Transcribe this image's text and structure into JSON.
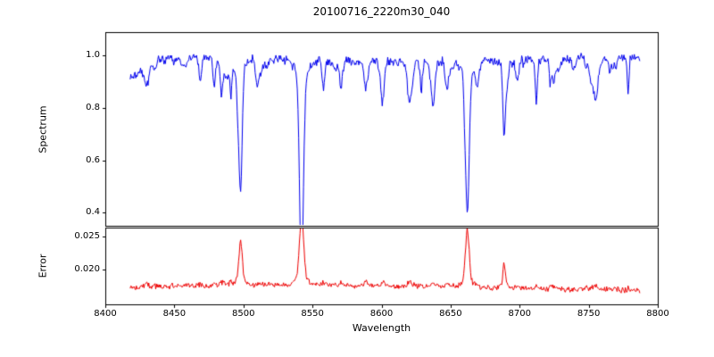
{
  "figure": {
    "background": "#ffffff",
    "spine_color": "#000000"
  },
  "chart_data": {
    "type": "line",
    "title": "20100716_2220m30_040",
    "xlabel": "Wavelength",
    "xlim": [
      8400,
      8800
    ],
    "x_ticks": [
      8400,
      8450,
      8500,
      8550,
      8600,
      8650,
      8700,
      8750,
      8800
    ],
    "x_tick_labels": [
      "8400",
      "8450",
      "8500",
      "8550",
      "8600",
      "8650",
      "8700",
      "8750",
      "8800"
    ],
    "x_start": 8418,
    "x_end": 8787,
    "x_step": 0.5,
    "seed": 20100716,
    "legend": "none",
    "grid": false,
    "panels": [
      {
        "name": "spectrum",
        "ylabel": "Spectrum",
        "line_color": "#0000ee",
        "ylim": [
          0.35,
          1.09
        ],
        "y_ticks": [
          0.4,
          0.6,
          0.8,
          1.0
        ],
        "y_tick_labels": [
          "0.4",
          "0.6",
          "0.8",
          "1.0"
        ],
        "continuum": 0.985,
        "noise_amp": 0.022,
        "edge_rolloff": {
          "center": 8418,
          "depth": 0.07,
          "width": 10
        },
        "absorption_lines": [
          {
            "center": 8498.0,
            "depth": 0.4,
            "width": 1.1
          },
          {
            "center": 8542.1,
            "depth": 0.58,
            "width": 1.5
          },
          {
            "center": 8662.1,
            "depth": 0.52,
            "width": 1.3
          },
          {
            "center": 8688.6,
            "depth": 0.22,
            "width": 0.8
          }
        ],
        "minor_lines": {
          "count": 70,
          "depth_min": 0.02,
          "depth_max": 0.16,
          "width_min": 0.5,
          "width_max": 1.6
        }
      },
      {
        "name": "error",
        "ylabel": "Error",
        "line_color": "#ee0000",
        "ylim": [
          0.0147,
          0.0263
        ],
        "y_ticks": [
          0.02,
          0.025
        ],
        "y_tick_labels": [
          "0.020",
          "0.025"
        ],
        "baseline": 0.0172,
        "noise_amp": 0.0005,
        "peak_scale_major": 0.0143,
        "peak_scale_minor": 0.004
      }
    ]
  }
}
